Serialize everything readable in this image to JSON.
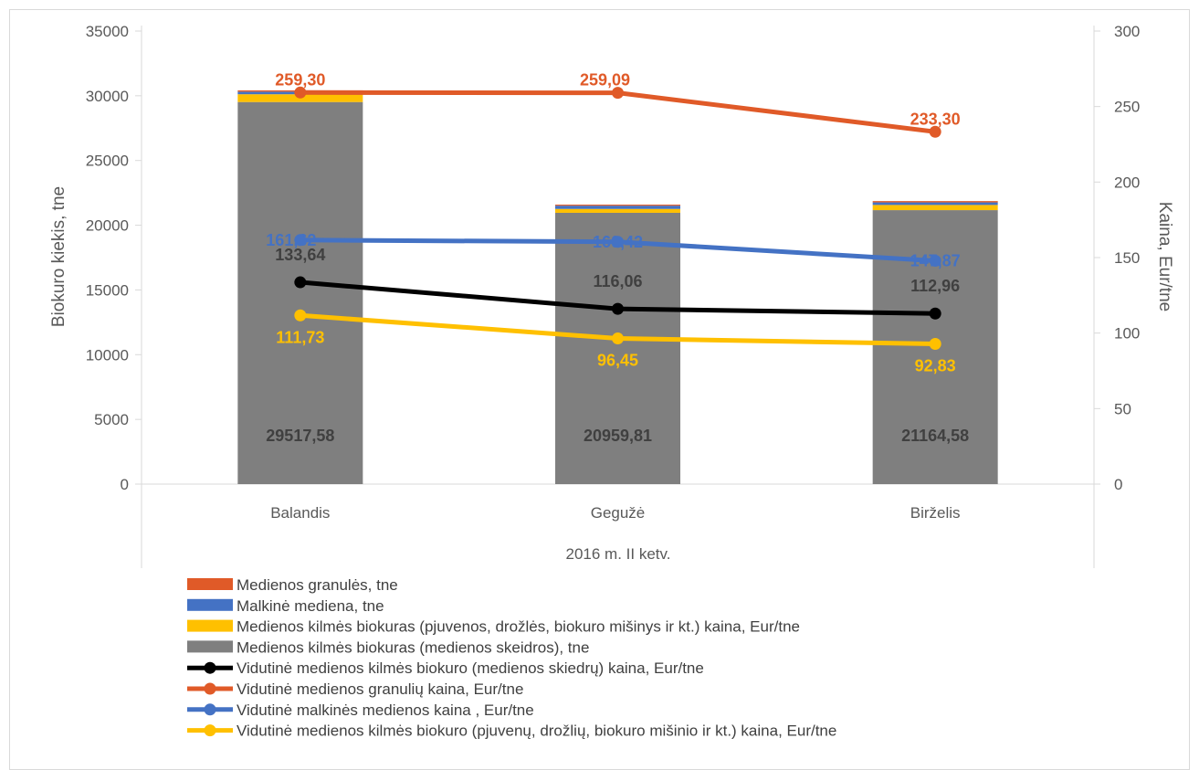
{
  "chart_data": {
    "type": "bar",
    "categories": [
      "Balandis",
      "Gegužė",
      "Birželis"
    ],
    "xlabel": "2016 m. II ketv.",
    "ylabel": "Biokuro kiekis, tne",
    "ylabel_right": "Kaina, Eur/tne",
    "ylim": [
      0,
      35000
    ],
    "ylim_right": [
      0,
      300
    ],
    "yticks": [
      "0",
      "5000",
      "10000",
      "15000",
      "20000",
      "25000",
      "30000",
      "35000"
    ],
    "yticks_right": [
      "0",
      "50",
      "100",
      "150",
      "200",
      "250",
      "300"
    ],
    "legend_position": "bottom",
    "bar_series": [
      {
        "name": "Medienos kilmės biokuras (medienos skeidros),  tne",
        "color": "#7f7f7f",
        "values": [
          29517.58,
          20959.81,
          21164.58
        ],
        "labels": [
          "29517,58",
          "20959,81",
          "21164,58"
        ]
      },
      {
        "name": "Medienos kilmės biokuras (pjuvenos, drožlės, biokuro mišinys ir kt.) kaina, Eur/tne",
        "color": "#ffc000",
        "values": [
          600,
          300,
          400
        ]
      },
      {
        "name": "Malkinė mediena, tne",
        "color": "#4472c4",
        "values": [
          200,
          250,
          200
        ]
      },
      {
        "name": "Medienos granulės, tne",
        "color": "#e05a28",
        "values": [
          100,
          80,
          100
        ]
      }
    ],
    "line_series": [
      {
        "name": "Vidutinė medienos kilmės biokuro (medienos skiedrų) kaina, Eur/tne",
        "color": "#000000",
        "values": [
          133.64,
          116.06,
          112.96
        ],
        "labels": [
          "133,64",
          "116,06",
          "112,96"
        ],
        "label_color": "#404040"
      },
      {
        "name": "Vidutinė medienos granulių  kaina, Eur/tne",
        "color": "#e05a28",
        "values": [
          259.3,
          259.09,
          233.3
        ],
        "labels": [
          "259,30",
          "259,09",
          "233,30"
        ],
        "label_color": "#e05a28"
      },
      {
        "name": "Vidutinė malkinės medienos kaina , Eur/tne",
        "color": "#4472c4",
        "values": [
          161.62,
          160.42,
          147.87
        ],
        "labels": [
          "161,62",
          "160,42",
          "147,87"
        ],
        "label_color": "#4472c4"
      },
      {
        "name": "Vidutinė medienos kilmės biokuro (pjuvenų, drožlių, biokuro mišinio ir kt.) kaina, Eur/tne",
        "color": "#ffc000",
        "values": [
          111.73,
          96.45,
          92.83
        ],
        "labels": [
          "111,73",
          "96,45",
          "92,83"
        ],
        "label_color": "#ffc000"
      }
    ],
    "legend_order": [
      {
        "kind": "bar",
        "series": 3
      },
      {
        "kind": "bar",
        "series": 2
      },
      {
        "kind": "bar",
        "series": 1
      },
      {
        "kind": "bar",
        "series": 0
      },
      {
        "kind": "line",
        "series": 0
      },
      {
        "kind": "line",
        "series": 1
      },
      {
        "kind": "line",
        "series": 2
      },
      {
        "kind": "line",
        "series": 3
      }
    ]
  }
}
